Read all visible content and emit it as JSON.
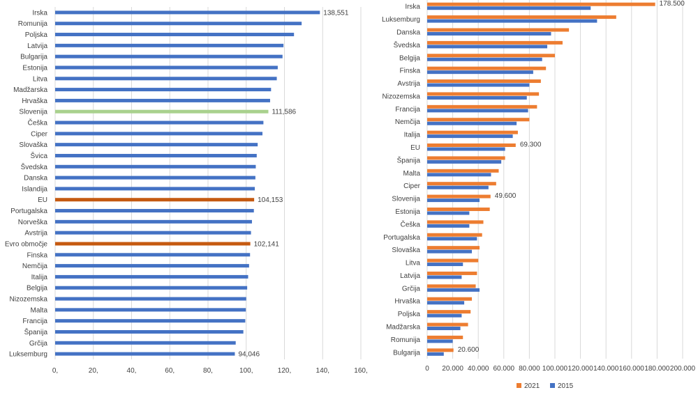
{
  "colors": {
    "default_bar": "#4472C4",
    "highlight_green": "#A9D18E",
    "highlight_orange": "#C55A11",
    "series_2021": "#ED7D31",
    "series_2015": "#4472C4",
    "grid": "#D9D9D9",
    "text": "#404040"
  },
  "chart_data": [
    {
      "type": "bar",
      "orientation": "horizontal",
      "title": "",
      "xlabel": "",
      "ylabel": "",
      "xlim": [
        0,
        160
      ],
      "x_ticks": [
        "0,",
        "20,",
        "40,",
        "60,",
        "80,",
        "100,",
        "120,",
        "140,",
        "160,"
      ],
      "grid": true,
      "categories": [
        "Irska",
        "Romunija",
        "Poljska",
        "Latvija",
        "Bulgarija",
        "Estonija",
        "Litva",
        "Madžarska",
        "Hrvaška",
        "Slovenija",
        "Češka",
        "Ciper",
        "Slovaška",
        "Švica",
        "Švedska",
        "Danska",
        "Islandija",
        "EU",
        "Portugalska",
        "Norveška",
        "Avstrija",
        "Evro območje",
        "Finska",
        "Nemčija",
        "Italija",
        "Belgija",
        "Nizozemska",
        "Malta",
        "Francija",
        "Španija",
        "Grčija",
        "Luksemburg"
      ],
      "values": [
        138.551,
        129,
        125,
        119.5,
        119,
        116.5,
        116,
        113,
        112.5,
        111.586,
        109,
        108.5,
        106,
        105.5,
        105,
        104.8,
        104.5,
        104.153,
        104,
        103,
        102.5,
        102.141,
        102,
        101.5,
        101,
        100.5,
        100,
        99.8,
        99.5,
        98.5,
        94.5,
        94.046
      ],
      "highlights": {
        "Slovenija": "green",
        "EU": "orange",
        "Evro območje": "orange"
      },
      "data_labels": [
        {
          "category": "Irska",
          "text": "138,551"
        },
        {
          "category": "Slovenija",
          "text": "111,586"
        },
        {
          "category": "EU",
          "text": "104,153"
        },
        {
          "category": "Evro območje",
          "text": "102,141"
        },
        {
          "category": "Luksemburg",
          "text": "94,046"
        }
      ]
    },
    {
      "type": "bar",
      "orientation": "horizontal",
      "title": "",
      "xlabel": "",
      "ylabel": "",
      "xlim": [
        0,
        200000
      ],
      "x_ticks": [
        "0",
        "20.000",
        "40.000",
        "60.000",
        "80.000",
        "100.000",
        "120.000",
        "140.000",
        "160.000",
        "180.000",
        "200.000"
      ],
      "grid": true,
      "legend_position": "bottom",
      "categories": [
        "Irska",
        "Luksemburg",
        "Danska",
        "Švedska",
        "Belgija",
        "Finska",
        "Avstrija",
        "Nizozemska",
        "Francija",
        "Nemčija",
        "Italija",
        "EU",
        "Španija",
        "Malta",
        "Ciper",
        "Slovenija",
        "Estonija",
        "Češka",
        "Portugalska",
        "Slovaška",
        "Litva",
        "Latvija",
        "Grčija",
        "Hrvaška",
        "Poljska",
        "Madžarska",
        "Romunija",
        "Bulgarija"
      ],
      "series": [
        {
          "name": "2021",
          "values": [
            178500,
            148000,
            111000,
            106000,
            100000,
            93000,
            89000,
            87500,
            86000,
            80000,
            71000,
            69300,
            61000,
            56000,
            54000,
            49600,
            49000,
            44000,
            43000,
            41000,
            40000,
            39000,
            38000,
            35000,
            34000,
            32000,
            28000,
            20600
          ]
        },
        {
          "name": "2015",
          "values": [
            128000,
            133000,
            97000,
            94000,
            90000,
            83000,
            80000,
            78000,
            79000,
            70000,
            67000,
            61000,
            58000,
            50000,
            48000,
            41000,
            33000,
            33000,
            39000,
            35000,
            28000,
            27000,
            41000,
            29000,
            27000,
            26000,
            20000,
            13000
          ]
        }
      ],
      "data_labels": [
        {
          "category": "Irska",
          "series": "2021",
          "text": "178.500"
        },
        {
          "category": "EU",
          "series": "2021",
          "text": "69.300"
        },
        {
          "category": "Slovenija",
          "series": "2021",
          "text": "49.600"
        },
        {
          "category": "Bulgarija",
          "series": "2021",
          "text": "20.600"
        }
      ]
    }
  ]
}
